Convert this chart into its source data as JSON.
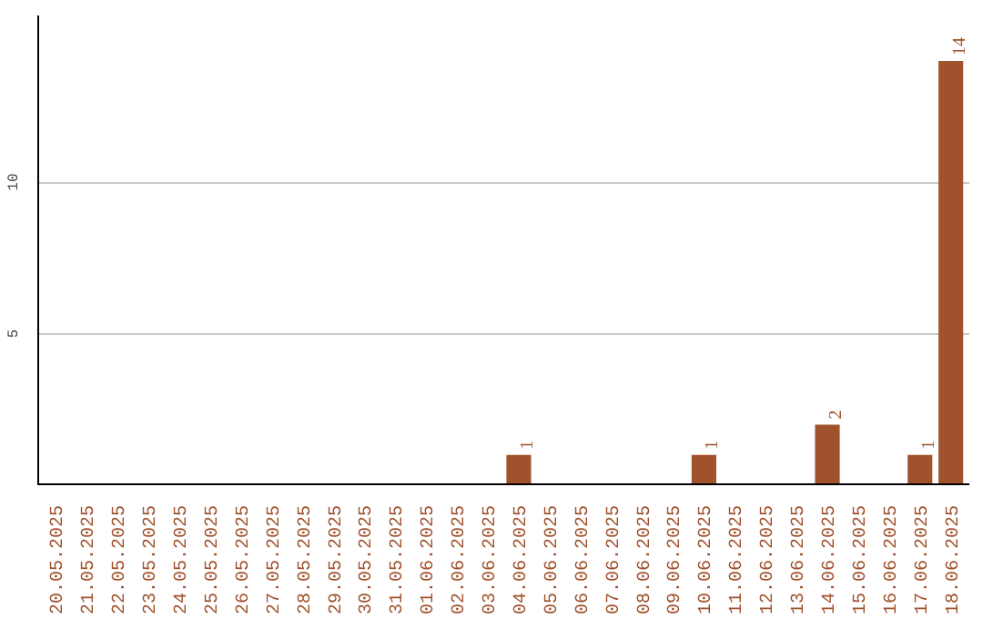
{
  "chart_data": {
    "type": "bar",
    "categories": [
      "20.05.2025",
      "21.05.2025",
      "22.05.2025",
      "23.05.2025",
      "24.05.2025",
      "25.05.2025",
      "26.05.2025",
      "27.05.2025",
      "28.05.2025",
      "29.05.2025",
      "30.05.2025",
      "31.05.2025",
      "01.06.2025",
      "02.06.2025",
      "03.06.2025",
      "04.06.2025",
      "05.06.2025",
      "06.06.2025",
      "07.06.2025",
      "08.06.2025",
      "09.06.2025",
      "10.06.2025",
      "11.06.2025",
      "12.06.2025",
      "13.06.2025",
      "14.06.2025",
      "15.06.2025",
      "16.06.2025",
      "17.06.2025",
      "18.06.2025"
    ],
    "values": [
      0,
      0,
      0,
      0,
      0,
      0,
      0,
      0,
      0,
      0,
      0,
      0,
      0,
      0,
      0,
      1,
      0,
      0,
      0,
      0,
      0,
      1,
      0,
      0,
      0,
      2,
      0,
      0,
      1,
      14
    ],
    "value_labels": [
      null,
      null,
      null,
      null,
      null,
      null,
      null,
      null,
      null,
      null,
      null,
      null,
      null,
      null,
      null,
      "1",
      null,
      null,
      null,
      null,
      null,
      "1",
      null,
      null,
      null,
      "2",
      null,
      null,
      "1",
      "14"
    ],
    "color": "#a0522d",
    "ylim": [
      0,
      15.5
    ],
    "yticks": [
      5,
      10
    ],
    "grid": "y"
  }
}
